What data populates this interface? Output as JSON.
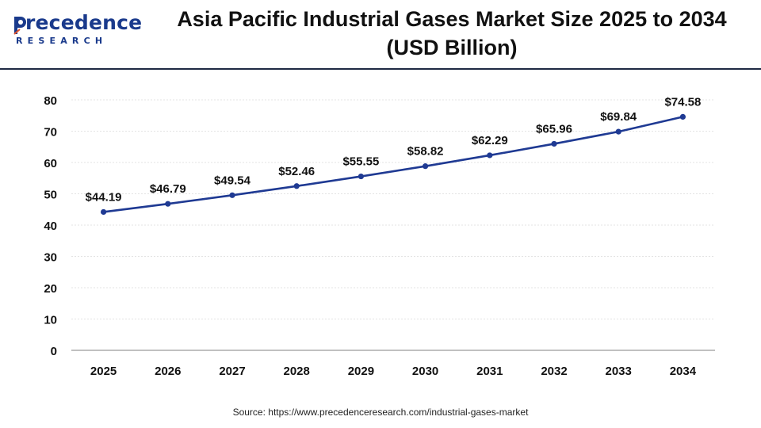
{
  "header": {
    "logo_word": "recedence",
    "logo_sub": "RESEARCH",
    "title_line1": "Asia Pacific Industrial Gases Market Size 2025 to 2034",
    "title_line2": "(USD Billion)"
  },
  "chart_data": {
    "type": "line",
    "title": "Asia Pacific Industrial Gases Market Size 2025 to 2034 (USD Billion)",
    "categories": [
      "2025",
      "2026",
      "2027",
      "2028",
      "2029",
      "2030",
      "2031",
      "2032",
      "2033",
      "2034"
    ],
    "series": [
      {
        "values": [
          44.19,
          46.79,
          49.54,
          52.46,
          55.55,
          58.82,
          62.29,
          65.96,
          69.84,
          74.58
        ],
        "labels": [
          "$44.19",
          "$46.79",
          "$49.54",
          "$52.46",
          "$55.55",
          "$58.82",
          "$62.29",
          "$65.96",
          "$69.84",
          "$74.58"
        ],
        "color": "#1f3a93"
      }
    ],
    "ylim": [
      0,
      80
    ],
    "yticks": [
      "0",
      "10",
      "20",
      "30",
      "40",
      "50",
      "60",
      "70",
      "80"
    ],
    "grid": "horizontal",
    "xlabel": "",
    "ylabel": ""
  },
  "footer": {
    "source": "Source: https://www.precedenceresearch.com/industrial-gases-market"
  }
}
